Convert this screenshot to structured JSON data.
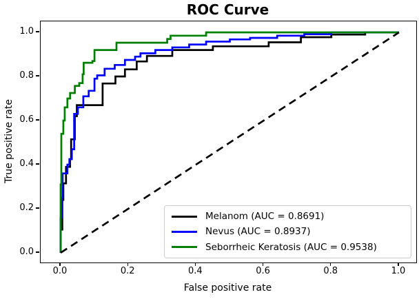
{
  "chart_data": {
    "type": "line",
    "title": "ROC Curve",
    "xlabel": "False positive rate",
    "ylabel": "True positive rate",
    "xlim": [
      -0.059,
      1.051
    ],
    "ylim": [
      -0.044,
      1.05
    ],
    "x_tick_values": [
      0.0,
      0.2,
      0.4,
      0.6,
      0.8,
      1.0
    ],
    "x_tick_labels": [
      "0.0",
      "0.2",
      "0.4",
      "0.6",
      "0.8",
      "1.0"
    ],
    "y_tick_values": [
      0.0,
      0.2,
      0.4,
      0.6,
      0.8,
      1.0
    ],
    "y_tick_labels": [
      "0.0",
      "0.2",
      "0.4",
      "0.6",
      "0.8",
      "1.0"
    ],
    "grid": false,
    "legend_position": "lower right",
    "line_width": 2.7,
    "series": [
      {
        "name": "Melanom",
        "auc": 0.8691,
        "legend_label": "Melanom (AUC = 0.8691)",
        "color": "#000000",
        "points": [
          [
            0,
            0
          ],
          [
            0,
            0.105
          ],
          [
            0.005,
            0.105
          ],
          [
            0.005,
            0.24
          ],
          [
            0.008,
            0.24
          ],
          [
            0.008,
            0.315
          ],
          [
            0.016,
            0.315
          ],
          [
            0.016,
            0.39
          ],
          [
            0.028,
            0.39
          ],
          [
            0.028,
            0.425
          ],
          [
            0.031,
            0.425
          ],
          [
            0.031,
            0.515
          ],
          [
            0.042,
            0.515
          ],
          [
            0.042,
            0.62
          ],
          [
            0.048,
            0.62
          ],
          [
            0.048,
            0.67
          ],
          [
            0.124,
            0.67
          ],
          [
            0.124,
            0.768
          ],
          [
            0.162,
            0.768
          ],
          [
            0.162,
            0.8
          ],
          [
            0.19,
            0.8
          ],
          [
            0.19,
            0.832
          ],
          [
            0.225,
            0.832
          ],
          [
            0.225,
            0.868
          ],
          [
            0.255,
            0.868
          ],
          [
            0.255,
            0.893
          ],
          [
            0.33,
            0.893
          ],
          [
            0.33,
            0.92
          ],
          [
            0.45,
            0.92
          ],
          [
            0.45,
            0.937
          ],
          [
            0.615,
            0.937
          ],
          [
            0.615,
            0.955
          ],
          [
            0.71,
            0.955
          ],
          [
            0.71,
            0.978
          ],
          [
            0.8,
            0.978
          ],
          [
            0.8,
            0.99
          ],
          [
            0.9,
            0.99
          ],
          [
            0.9,
            1.0
          ],
          [
            1,
            1
          ]
        ]
      },
      {
        "name": "Nevus",
        "auc": 0.8937,
        "legend_label": "Nevus (AUC = 0.8937)",
        "color": "#0000ff",
        "points": [
          [
            0,
            0
          ],
          [
            0,
            0.16
          ],
          [
            0.003,
            0.16
          ],
          [
            0.003,
            0.25
          ],
          [
            0.006,
            0.25
          ],
          [
            0.006,
            0.36
          ],
          [
            0.02,
            0.36
          ],
          [
            0.02,
            0.4
          ],
          [
            0.026,
            0.4
          ],
          [
            0.026,
            0.425
          ],
          [
            0.033,
            0.425
          ],
          [
            0.033,
            0.47
          ],
          [
            0.04,
            0.47
          ],
          [
            0.04,
            0.63
          ],
          [
            0.051,
            0.63
          ],
          [
            0.051,
            0.66
          ],
          [
            0.067,
            0.66
          ],
          [
            0.067,
            0.71
          ],
          [
            0.083,
            0.71
          ],
          [
            0.083,
            0.735
          ],
          [
            0.1,
            0.735
          ],
          [
            0.1,
            0.79
          ],
          [
            0.108,
            0.79
          ],
          [
            0.108,
            0.805
          ],
          [
            0.13,
            0.805
          ],
          [
            0.13,
            0.835
          ],
          [
            0.16,
            0.835
          ],
          [
            0.16,
            0.852
          ],
          [
            0.19,
            0.852
          ],
          [
            0.19,
            0.875
          ],
          [
            0.22,
            0.875
          ],
          [
            0.22,
            0.89
          ],
          [
            0.236,
            0.89
          ],
          [
            0.236,
            0.905
          ],
          [
            0.28,
            0.905
          ],
          [
            0.28,
            0.92
          ],
          [
            0.33,
            0.92
          ],
          [
            0.33,
            0.932
          ],
          [
            0.38,
            0.932
          ],
          [
            0.38,
            0.945
          ],
          [
            0.43,
            0.945
          ],
          [
            0.43,
            0.958
          ],
          [
            0.5,
            0.958
          ],
          [
            0.5,
            0.968
          ],
          [
            0.56,
            0.968
          ],
          [
            0.56,
            0.975
          ],
          [
            0.64,
            0.975
          ],
          [
            0.64,
            0.985
          ],
          [
            0.72,
            0.985
          ],
          [
            0.72,
            0.992
          ],
          [
            0.8,
            0.992
          ],
          [
            0.8,
            1.0
          ],
          [
            1,
            1
          ]
        ]
      },
      {
        "name": "Seborrheic Keratosis",
        "auc": 0.9538,
        "legend_label": "Seborrheic Keratosis (AUC = 0.9538)",
        "color": "#008000",
        "points": [
          [
            0,
            0
          ],
          [
            0,
            0.31
          ],
          [
            0.002,
            0.31
          ],
          [
            0.002,
            0.54
          ],
          [
            0.008,
            0.54
          ],
          [
            0.008,
            0.6
          ],
          [
            0.012,
            0.6
          ],
          [
            0.012,
            0.66
          ],
          [
            0.02,
            0.66
          ],
          [
            0.02,
            0.7
          ],
          [
            0.028,
            0.7
          ],
          [
            0.028,
            0.725
          ],
          [
            0.042,
            0.725
          ],
          [
            0.042,
            0.757
          ],
          [
            0.055,
            0.757
          ],
          [
            0.055,
            0.77
          ],
          [
            0.065,
            0.77
          ],
          [
            0.065,
            0.81
          ],
          [
            0.068,
            0.81
          ],
          [
            0.068,
            0.862
          ],
          [
            0.094,
            0.862
          ],
          [
            0.094,
            0.87
          ],
          [
            0.1,
            0.87
          ],
          [
            0.1,
            0.92
          ],
          [
            0.165,
            0.92
          ],
          [
            0.165,
            0.953
          ],
          [
            0.315,
            0.953
          ],
          [
            0.315,
            0.97
          ],
          [
            0.325,
            0.97
          ],
          [
            0.325,
            0.985
          ],
          [
            0.43,
            0.985
          ],
          [
            0.43,
            1.0
          ],
          [
            1,
            1
          ]
        ]
      }
    ],
    "reference_line": {
      "name": "chance-diagonal",
      "style": "dashed",
      "color": "#000000",
      "dash_pattern": [
        11,
        7
      ],
      "points": [
        [
          0,
          0
        ],
        [
          1,
          1
        ]
      ]
    }
  }
}
